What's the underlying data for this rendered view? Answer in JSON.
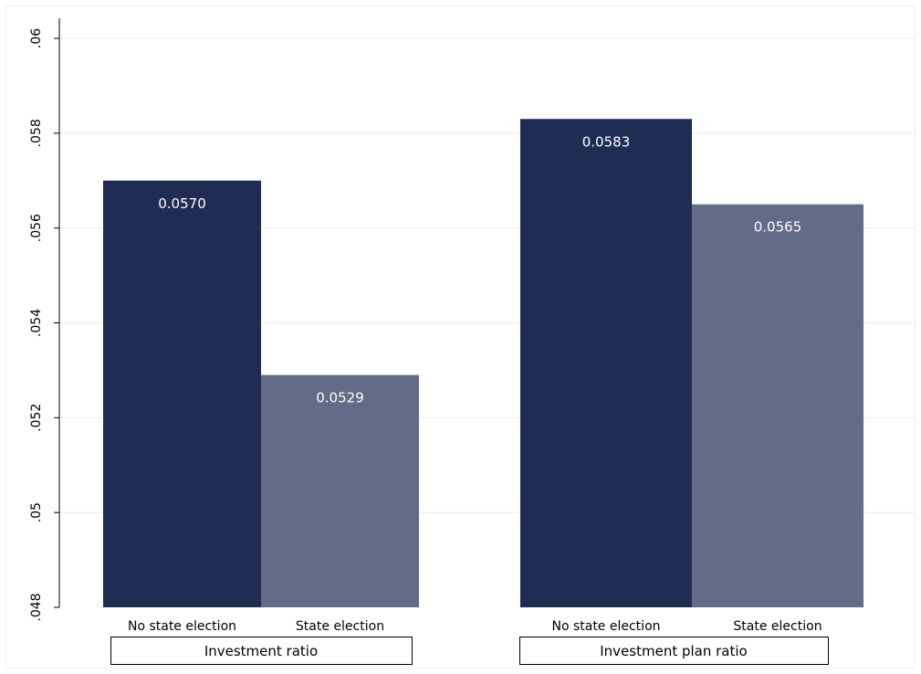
{
  "chart_data": {
    "type": "bar",
    "ylim": [
      0.048,
      0.06
    ],
    "yticks": [
      {
        "value": 0.048,
        "label": ".048"
      },
      {
        "value": 0.05,
        "label": ".05"
      },
      {
        "value": 0.052,
        "label": ".052"
      },
      {
        "value": 0.054,
        "label": ".054"
      },
      {
        "value": 0.056,
        "label": ".056"
      },
      {
        "value": 0.058,
        "label": ".058"
      },
      {
        "value": 0.06,
        "label": ".06"
      }
    ],
    "grid": true,
    "groups": [
      {
        "label": "Investment ratio",
        "bars": [
          {
            "category": "No state election",
            "value": 0.057,
            "value_label": "0.0570",
            "color": "#1f2d54"
          },
          {
            "category": "State election",
            "value": 0.0529,
            "value_label": "0.0529",
            "color": "#636c86"
          }
        ]
      },
      {
        "label": "Investment plan ratio",
        "bars": [
          {
            "category": "No state election",
            "value": 0.0583,
            "value_label": "0.0583",
            "color": "#1f2d54"
          },
          {
            "category": "State election",
            "value": 0.0565,
            "value_label": "0.0565",
            "color": "#636c86"
          }
        ]
      }
    ],
    "colors": {
      "no_state_election": "#1f2d54",
      "state_election": "#636c86",
      "grid": "#e8ebef",
      "axis": "#000000",
      "value_label": "#ffffff"
    }
  }
}
